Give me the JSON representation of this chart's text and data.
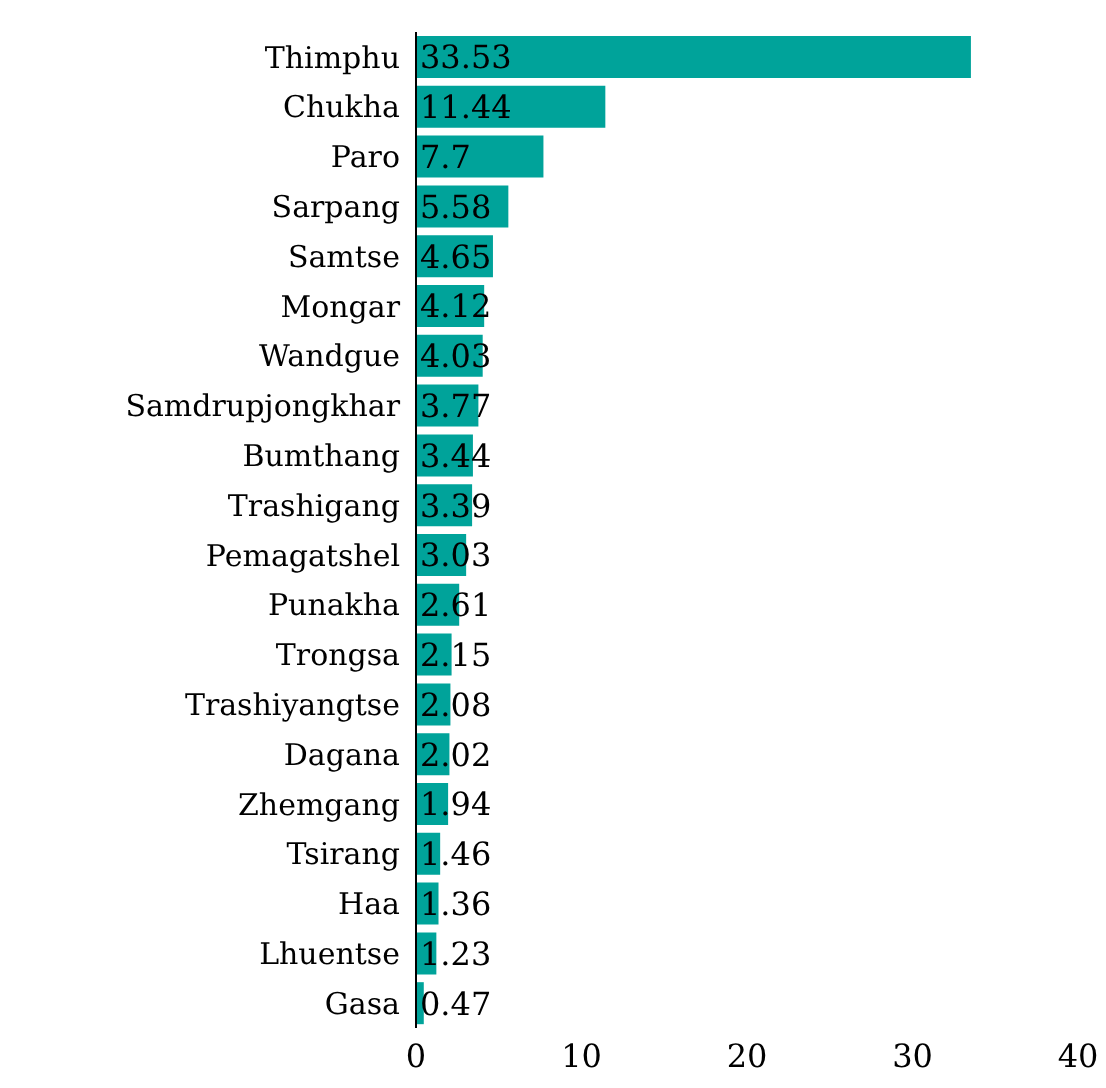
{
  "chart_data": {
    "type": "bar",
    "orientation": "horizontal",
    "categories": [
      "Thimphu",
      "Chukha",
      "Paro",
      "Sarpang",
      "Samtse",
      "Mongar",
      "Wandgue",
      "Samdrupjongkhar",
      "Bumthang",
      "Trashigang",
      "Pemagatshel",
      "Punakha",
      "Trongsa",
      "Trashiyangtse",
      "Dagana",
      "Zhemgang",
      "Tsirang",
      "Haa",
      "Lhuentse",
      "Gasa"
    ],
    "values": [
      33.53,
      11.44,
      7.7,
      5.58,
      4.65,
      4.12,
      4.03,
      3.77,
      3.44,
      3.39,
      3.03,
      2.61,
      2.15,
      2.08,
      2.02,
      1.94,
      1.46,
      1.36,
      1.23,
      0.47
    ],
    "color": "#00a39a",
    "xlim": [
      0,
      40
    ],
    "xticks": [
      0,
      10,
      20,
      30,
      40
    ],
    "grid": false,
    "legend": false,
    "data_labels": true
  }
}
